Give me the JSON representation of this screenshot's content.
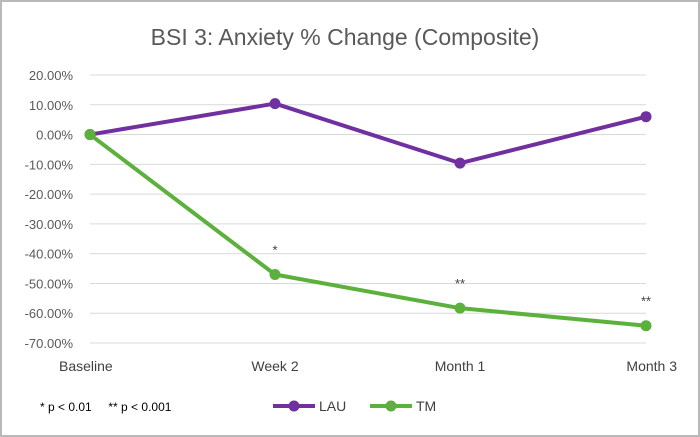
{
  "chart_data": {
    "type": "line",
    "title": "BSI 3: Anxiety % Change (Composite)",
    "xlabel": "",
    "ylabel": "",
    "categories": [
      "Baseline",
      "Week 2",
      "Month 1",
      "Month 3"
    ],
    "ylim": [
      -70,
      20
    ],
    "yticks": [
      20,
      10,
      0,
      -10,
      -20,
      -30,
      -40,
      -50,
      -60,
      -70
    ],
    "ytick_labels": [
      "20.00%",
      "10.00%",
      "0.00%",
      "-10.00%",
      "-20.00%",
      "-30.00%",
      "-40.00%",
      "-50.00%",
      "-60.00%",
      "-70.00%"
    ],
    "series": [
      {
        "name": "LAU",
        "color": "#7030a0",
        "values": [
          0,
          10.4,
          -9.6,
          6.0
        ]
      },
      {
        "name": "TM",
        "color": "#5cb03c",
        "values": [
          0,
          -47.0,
          -58.3,
          -64.2
        ]
      }
    ],
    "significance": [
      {
        "category": "Week 2",
        "label": "*"
      },
      {
        "category": "Month 1",
        "label": "**"
      },
      {
        "category": "Month 3",
        "label": "**"
      }
    ],
    "footnote": "* p < 0.01     ** p < 0.001",
    "grid": true,
    "legend_position": "bottom"
  },
  "colors": {
    "grid": "#d9d9d9",
    "text": "#595959"
  }
}
